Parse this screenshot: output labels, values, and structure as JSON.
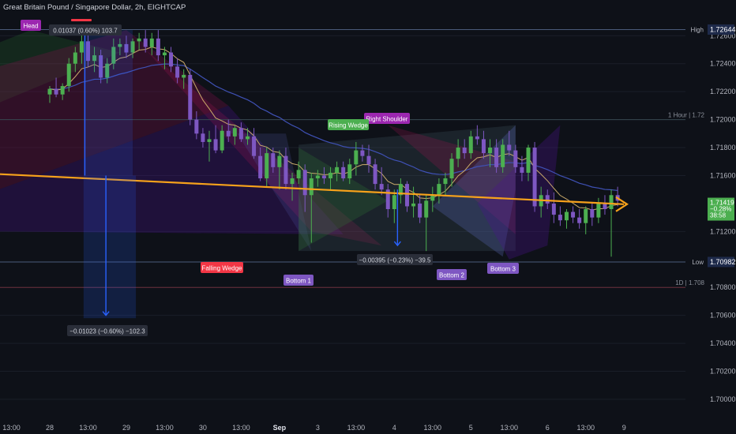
{
  "header": {
    "title": "Great Britain Pound / Singapore Dollar, 2h, EIGHTCAP"
  },
  "chart_data": {
    "type": "candlestick",
    "ylim": [
      1.7,
      1.7272
    ],
    "y_ticks": [
      "1.72600",
      "1.72400",
      "1.72200",
      "1.72000",
      "1.71800",
      "1.71600",
      "1.71200",
      "1.70800",
      "1.70600",
      "1.70400",
      "1.70200",
      "1.70000"
    ],
    "y_tick_values": [
      1.726,
      1.724,
      1.722,
      1.72,
      1.718,
      1.716,
      1.712,
      1.708,
      1.706,
      1.704,
      1.702,
      1.7
    ],
    "x_ticks": [
      "13:00",
      "28",
      "13:00",
      "29",
      "13:00",
      "30",
      "13:00",
      "Sep",
      "3",
      "13:00",
      "4",
      "13:00",
      "5",
      "13:00",
      "6",
      "13:00",
      "9"
    ],
    "x_tick_index": [
      -6,
      0,
      6,
      12,
      18,
      24,
      30,
      36,
      42,
      48,
      54,
      60,
      66,
      72,
      78,
      84,
      90
    ],
    "price_labels": [
      {
        "label": "High",
        "value_text": "1.72644",
        "value": 1.72644,
        "color": "#1e2a4a"
      },
      {
        "label": "Low",
        "value_text": "1.70982",
        "value": 1.70982,
        "color": "#1e2a4a"
      }
    ],
    "current_price": {
      "value": 1.71419,
      "value_text": "1.71419",
      "change": "−0.28%",
      "countdown": "38:58",
      "color": "#4caf50"
    },
    "level_lines": [
      {
        "label": "1 Hour | 1.72",
        "value": 1.72
      },
      {
        "label": "1D | 1.708",
        "value": 1.708
      }
    ],
    "annotations": {
      "head": "Head",
      "right_shoulder": "Right Shoulder",
      "rising_wedge": "Rising Wedge",
      "falling_wedge": "Falling Wedge",
      "bottom1": "Bottom 1",
      "bottom2": "Bottom 2",
      "bottom3": "Bottom 3",
      "measure_top": "0.01037 (0.60%) 103.7",
      "measure_down": "−0.01023 (−0.60%) −102.3",
      "measure_mid": "−0.00395 (−0.23%) −39.5"
    },
    "colors": {
      "bull": "#4caf50",
      "bear": "#7e57c2",
      "trendline": "#f7a21b",
      "ema_slow": "#3f51b5",
      "ema_fast": "#c8a96a",
      "measure": "#2962ff"
    },
    "candles": [
      [
        1.7218,
        1.7224,
        1.7212,
        1.7222
      ],
      [
        1.7222,
        1.723,
        1.7216,
        1.7218
      ],
      [
        1.7218,
        1.7226,
        1.7214,
        1.7224
      ],
      [
        1.7224,
        1.7244,
        1.722,
        1.724
      ],
      [
        1.724,
        1.7252,
        1.7234,
        1.7248
      ],
      [
        1.7248,
        1.7262,
        1.724,
        1.7256
      ],
      [
        1.7256,
        1.7264,
        1.7238,
        1.7242
      ],
      [
        1.7242,
        1.7252,
        1.7234,
        1.7246
      ],
      [
        1.7246,
        1.725,
        1.7226,
        1.723
      ],
      [
        1.723,
        1.7244,
        1.7226,
        1.724
      ],
      [
        1.724,
        1.7258,
        1.7236,
        1.7252
      ],
      [
        1.7252,
        1.7258,
        1.7246,
        1.7254
      ],
      [
        1.7254,
        1.726,
        1.7244,
        1.7248
      ],
      [
        1.7248,
        1.7258,
        1.7244,
        1.7256
      ],
      [
        1.7256,
        1.7262,
        1.725,
        1.7258
      ],
      [
        1.7258,
        1.7264,
        1.7248,
        1.7252
      ],
      [
        1.7252,
        1.7262,
        1.7246,
        1.7258
      ],
      [
        1.7258,
        1.7264,
        1.7242,
        1.7246
      ],
      [
        1.7246,
        1.7252,
        1.7236,
        1.7248
      ],
      [
        1.7248,
        1.7252,
        1.7234,
        1.7238
      ],
      [
        1.7238,
        1.7244,
        1.7226,
        1.723
      ],
      [
        1.723,
        1.7236,
        1.7222,
        1.7232
      ],
      [
        1.7232,
        1.7236,
        1.7196,
        1.72
      ],
      [
        1.72,
        1.7206,
        1.7186,
        1.719
      ],
      [
        1.719,
        1.7194,
        1.718,
        1.7184
      ],
      [
        1.7184,
        1.7192,
        1.717,
        1.7186
      ],
      [
        1.7186,
        1.7196,
        1.7176,
        1.7178
      ],
      [
        1.7178,
        1.7196,
        1.7176,
        1.7192
      ],
      [
        1.7192,
        1.72,
        1.7184,
        1.7188
      ],
      [
        1.7188,
        1.7196,
        1.7182,
        1.7194
      ],
      [
        1.7194,
        1.7198,
        1.7184,
        1.7186
      ],
      [
        1.7186,
        1.7194,
        1.7182,
        1.7188
      ],
      [
        1.7188,
        1.7194,
        1.7172,
        1.7174
      ],
      [
        1.7174,
        1.718,
        1.7156,
        1.7158
      ],
      [
        1.7158,
        1.718,
        1.7152,
        1.7176
      ],
      [
        1.7176,
        1.718,
        1.7162,
        1.7166
      ],
      [
        1.7166,
        1.7178,
        1.715,
        1.7174
      ],
      [
        1.7174,
        1.718,
        1.715,
        1.7154
      ],
      [
        1.7154,
        1.7162,
        1.7142,
        1.7158
      ],
      [
        1.7158,
        1.717,
        1.7154,
        1.7164
      ],
      [
        1.7164,
        1.7168,
        1.7134,
        1.7146
      ],
      [
        1.7146,
        1.7162,
        1.7112,
        1.7158
      ],
      [
        1.7158,
        1.7164,
        1.7152,
        1.716
      ],
      [
        1.716,
        1.7166,
        1.7154,
        1.7158
      ],
      [
        1.7158,
        1.7166,
        1.715,
        1.7162
      ],
      [
        1.7162,
        1.717,
        1.7156,
        1.7166
      ],
      [
        1.7166,
        1.717,
        1.7156,
        1.7158
      ],
      [
        1.7158,
        1.7172,
        1.7154,
        1.7168
      ],
      [
        1.7168,
        1.7184,
        1.716,
        1.7178
      ],
      [
        1.7178,
        1.7182,
        1.717,
        1.7174
      ],
      [
        1.7174,
        1.7182,
        1.7162,
        1.7168
      ],
      [
        1.7168,
        1.7172,
        1.715,
        1.7154
      ],
      [
        1.7154,
        1.7166,
        1.7146,
        1.715
      ],
      [
        1.715,
        1.7154,
        1.713,
        1.7136
      ],
      [
        1.7136,
        1.715,
        1.7126,
        1.7146
      ],
      [
        1.7146,
        1.7158,
        1.714,
        1.7154
      ],
      [
        1.7154,
        1.7156,
        1.7134,
        1.7138
      ],
      [
        1.7138,
        1.7152,
        1.713,
        1.714
      ],
      [
        1.714,
        1.7146,
        1.7126,
        1.713
      ],
      [
        1.713,
        1.7146,
        1.7106,
        1.7142
      ],
      [
        1.7142,
        1.7152,
        1.7134,
        1.7146
      ],
      [
        1.7146,
        1.7158,
        1.714,
        1.7154
      ],
      [
        1.7154,
        1.7162,
        1.7146,
        1.7158
      ],
      [
        1.7158,
        1.7176,
        1.7152,
        1.7172
      ],
      [
        1.7172,
        1.7186,
        1.7166,
        1.718
      ],
      [
        1.718,
        1.7186,
        1.7172,
        1.7176
      ],
      [
        1.7176,
        1.7192,
        1.7172,
        1.7188
      ],
      [
        1.7188,
        1.7196,
        1.7182,
        1.7186
      ],
      [
        1.7186,
        1.7192,
        1.7172,
        1.7176
      ],
      [
        1.7176,
        1.7186,
        1.7166,
        1.718
      ],
      [
        1.718,
        1.7186,
        1.7162,
        1.7166
      ],
      [
        1.7166,
        1.7186,
        1.7162,
        1.7182
      ],
      [
        1.7182,
        1.7192,
        1.7174,
        1.7178
      ],
      [
        1.7178,
        1.7182,
        1.7162,
        1.7166
      ],
      [
        1.7166,
        1.7174,
        1.7156,
        1.7162
      ],
      [
        1.7162,
        1.7182,
        1.7156,
        1.718
      ],
      [
        1.718,
        1.7184,
        1.7134,
        1.7138
      ],
      [
        1.7138,
        1.7152,
        1.713,
        1.7146
      ],
      [
        1.7146,
        1.715,
        1.7136,
        1.714
      ],
      [
        1.714,
        1.7148,
        1.7126,
        1.7132
      ],
      [
        1.7132,
        1.7138,
        1.7124,
        1.7128
      ],
      [
        1.7128,
        1.7136,
        1.7122,
        1.7134
      ],
      [
        1.7134,
        1.7138,
        1.7126,
        1.713
      ],
      [
        1.713,
        1.7136,
        1.7122,
        1.7126
      ],
      [
        1.7126,
        1.7138,
        1.7118,
        1.7136
      ],
      [
        1.7136,
        1.714,
        1.7124,
        1.713
      ],
      [
        1.713,
        1.7144,
        1.7126,
        1.714
      ],
      [
        1.714,
        1.7146,
        1.7132,
        1.7136
      ],
      [
        1.7136,
        1.715,
        1.7102,
        1.7146
      ],
      [
        1.7146,
        1.7152,
        1.7138,
        1.7142
      ]
    ]
  }
}
